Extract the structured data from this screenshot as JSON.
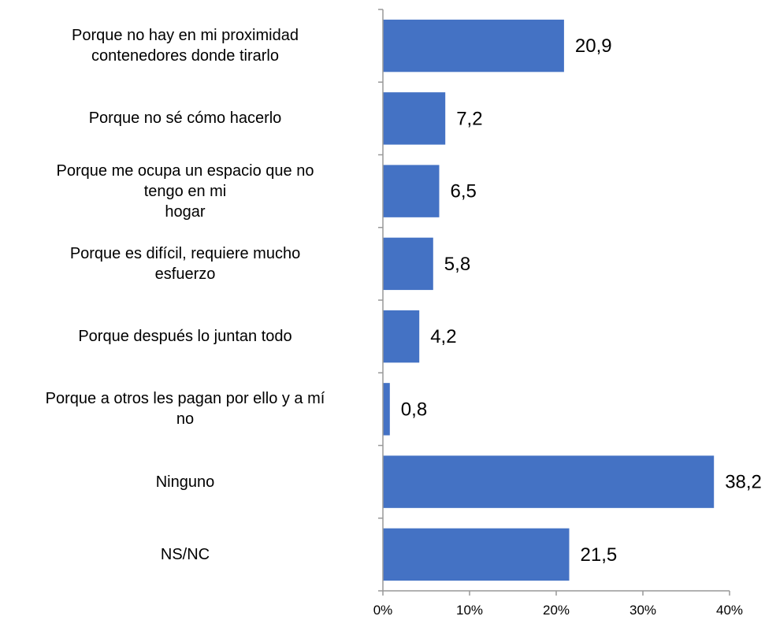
{
  "chart_data": {
    "type": "bar",
    "orientation": "horizontal",
    "categories": [
      [
        "Porque no hay en mi proximidad",
        "contenedores donde tirarlo"
      ],
      [
        "Porque no sé cómo hacerlo"
      ],
      [
        "Porque me ocupa un espacio que no",
        "tengo en mi",
        "hogar"
      ],
      [
        "Porque es difícil, requiere mucho",
        "esfuerzo"
      ],
      [
        "Porque después lo juntan todo"
      ],
      [
        "Porque a otros les pagan por ello y a mí",
        "no"
      ],
      [
        "Ninguno"
      ],
      [
        "NS/NC"
      ]
    ],
    "values": [
      20.9,
      7.2,
      6.5,
      5.8,
      4.2,
      0.8,
      38.2,
      21.5
    ],
    "data_labels": [
      "20,9",
      "7,2",
      "6,5",
      "5,8",
      "4,2",
      "0,8",
      "38,2",
      "21,5"
    ],
    "x_ticks": [
      0,
      10,
      20,
      30,
      40
    ],
    "x_tick_labels": [
      "0%",
      "10%",
      "20%",
      "30%",
      "40%"
    ],
    "xlim": [
      0,
      40
    ],
    "bar_color": "#4472C4",
    "axis_color": "#999999",
    "grid": false,
    "legend": "none"
  }
}
